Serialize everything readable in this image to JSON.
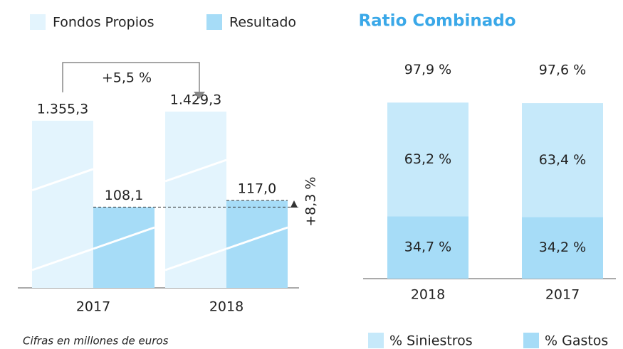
{
  "chart_data": [
    {
      "type": "bar",
      "categories": [
        "2017",
        "2018"
      ],
      "series": [
        {
          "name": "Fondos Propios",
          "color": "#e3f4fd",
          "values": [
            1355.3,
            1429.3
          ],
          "value_labels": [
            "1.355,3",
            "1.429,3"
          ]
        },
        {
          "name": "Resultado",
          "color": "#a6dcf7",
          "values": [
            108.1,
            117.0
          ],
          "value_labels": [
            "108,1",
            "117,0"
          ]
        }
      ],
      "annotations": [
        "+5,5 %",
        "+8,3 %"
      ],
      "note": "Cifras en millones de euros"
    },
    {
      "type": "stacked_bar",
      "title": "Ratio Combinado",
      "categories": [
        "2018",
        "2017"
      ],
      "series": [
        {
          "name": "% Gastos",
          "color": "#a6dcf7",
          "values": [
            34.7,
            34.2
          ],
          "value_labels": [
            "34,7 %",
            "34,2 %"
          ]
        },
        {
          "name": "% Siniestros",
          "color": "#c6e9fa",
          "values": [
            63.2,
            63.4
          ],
          "value_labels": [
            "63,2 %",
            "63,4 %"
          ]
        }
      ],
      "totals": [
        97.9,
        97.6
      ],
      "total_labels": [
        "97,9 %",
        "97,6 %"
      ],
      "ylim": [
        0,
        100
      ]
    }
  ]
}
